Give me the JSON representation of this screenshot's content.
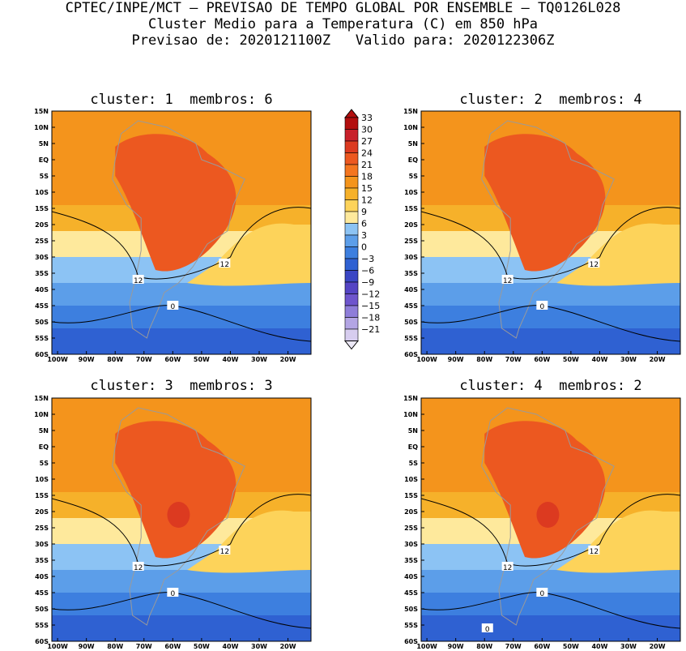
{
  "header": {
    "line1": "CPTEC/INPE/MCT – PREVISAO DE TEMPO GLOBAL POR ENSEMBLE – TQ0126L028",
    "line2": "Cluster Medio para a Temperatura (C) em 850 hPa",
    "line3": "Previsao de: 2020121100Z   Valido para: 2020122306Z"
  },
  "panels": [
    {
      "title": "cluster: 1  membros: 6",
      "contour_labels": [
        "12",
        "12",
        "0"
      ]
    },
    {
      "title": "cluster: 2  membros: 4",
      "contour_labels": [
        "12",
        "12",
        "0"
      ]
    },
    {
      "title": "cluster: 3  membros: 3",
      "contour_labels": [
        "12",
        "12",
        "0"
      ]
    },
    {
      "title": "cluster: 4  membros: 2",
      "contour_labels": [
        "12",
        "12",
        "0",
        "0"
      ]
    }
  ],
  "lat_labels": [
    "15N",
    "10N",
    "5N",
    "EQ",
    "5S",
    "10S",
    "15S",
    "20S",
    "25S",
    "30S",
    "35S",
    "40S",
    "45S",
    "50S",
    "55S",
    "60S"
  ],
  "lon_labels": [
    "100W",
    "90W",
    "80W",
    "70W",
    "60W",
    "50W",
    "40W",
    "30W",
    "20W"
  ],
  "colorbar": {
    "labels": [
      "33",
      "30",
      "27",
      "24",
      "21",
      "18",
      "15",
      "12",
      "9",
      "6",
      "3",
      "0",
      "−3",
      "−6",
      "−9",
      "−12",
      "−15",
      "−18",
      "−21"
    ],
    "colors": [
      "#b30f0f",
      "#c8202a",
      "#dc3a20",
      "#ec5820",
      "#f4751f",
      "#f4941c",
      "#f6b12a",
      "#fdd35a",
      "#fee99c",
      "#8cc3f4",
      "#5c9ee9",
      "#3d7fdf",
      "#2f61d2",
      "#3a46c4",
      "#5444c4",
      "#6e55cd",
      "#8e7dd9",
      "#b3a5e4",
      "#d7cdef"
    ]
  },
  "colors": {
    "coast": "#9a9a9a",
    "contour": "#000000"
  }
}
